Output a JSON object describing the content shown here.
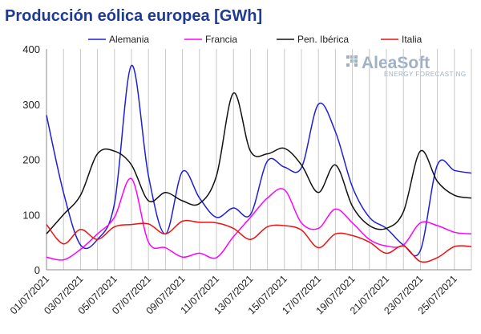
{
  "chart_data": {
    "type": "line",
    "title": "Producción eólica europea [GWh]",
    "x": [
      "01/07/2021",
      "02/07/2021",
      "03/07/2021",
      "04/07/2021",
      "05/07/2021",
      "06/07/2021",
      "07/07/2021",
      "08/07/2021",
      "09/07/2021",
      "10/07/2021",
      "11/07/2021",
      "12/07/2021",
      "13/07/2021",
      "14/07/2021",
      "15/07/2021",
      "16/07/2021",
      "17/07/2021",
      "18/07/2021",
      "19/07/2021",
      "20/07/2021",
      "21/07/2021",
      "22/07/2021",
      "23/07/2021",
      "24/07/2021",
      "25/07/2021",
      "26/07/2021"
    ],
    "x_tick_labels": [
      "01/07/2021",
      "03/07/2021",
      "05/07/2021",
      "07/07/2021",
      "09/07/2021",
      "11/07/2021",
      "13/07/2021",
      "15/07/2021",
      "17/07/2021",
      "19/07/2021",
      "21/07/2021",
      "23/07/2021",
      "25/07/2021"
    ],
    "ylim": [
      0,
      400
    ],
    "yticks": [
      0,
      100,
      200,
      300,
      400
    ],
    "grid": "vertical",
    "legend_position": "top",
    "series": [
      {
        "name": "Alemania",
        "color": "#1f1fd6",
        "values": [
          280,
          140,
          45,
          55,
          120,
          370,
          170,
          65,
          178,
          130,
          95,
          112,
          100,
          197,
          186,
          185,
          300,
          250,
          150,
          95,
          75,
          45,
          35,
          190,
          180,
          175
        ]
      },
      {
        "name": "Francia",
        "color": "#ff00ff",
        "values": [
          23,
          18,
          37,
          65,
          95,
          165,
          50,
          40,
          23,
          30,
          22,
          60,
          95,
          130,
          145,
          85,
          75,
          110,
          85,
          55,
          43,
          45,
          85,
          80,
          68,
          65
        ]
      },
      {
        "name": "Pen. Ibérica",
        "color": "#111111",
        "values": [
          65,
          100,
          135,
          210,
          215,
          190,
          125,
          140,
          125,
          120,
          170,
          320,
          215,
          210,
          220,
          190,
          140,
          190,
          115,
          80,
          75,
          105,
          215,
          160,
          135,
          130
        ]
      },
      {
        "name": "Italia",
        "color": "#ee1111",
        "values": [
          82,
          47,
          73,
          55,
          78,
          82,
          83,
          65,
          88,
          86,
          85,
          75,
          55,
          78,
          80,
          72,
          40,
          65,
          62,
          50,
          30,
          43,
          15,
          22,
          42,
          42
        ]
      }
    ]
  },
  "watermark": {
    "brand": "AleaSoft",
    "tagline": "ENERGY FORECASTING"
  }
}
